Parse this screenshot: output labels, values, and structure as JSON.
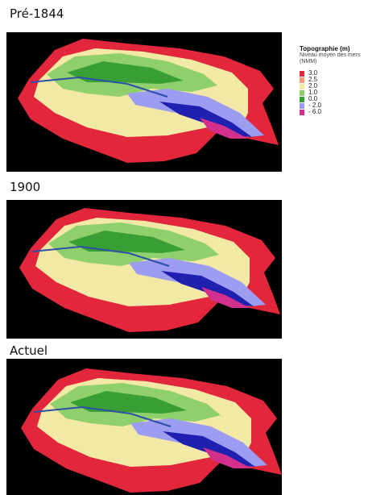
{
  "panels": [
    {
      "title": "Pré-1844"
    },
    {
      "title": "1900"
    },
    {
      "title": "Actuel"
    }
  ],
  "legend": {
    "title": "Topographie  (m)",
    "subtitle": "Niveau moyen des mers (NMM)",
    "items": [
      {
        "label": "3.0",
        "color": "#e2263c"
      },
      {
        "label": "2.5",
        "color": "#f39a78"
      },
      {
        "label": "2.0",
        "color": "#f3e9a6"
      },
      {
        "label": "1.0",
        "color": "#8fd06c"
      },
      {
        "label": "0.0",
        "color": "#3a9e36"
      },
      {
        "label": "- 2.0",
        "color": "#9c9cf0"
      },
      {
        "label": "- 6.0",
        "color": "#d2308c"
      }
    ]
  }
}
